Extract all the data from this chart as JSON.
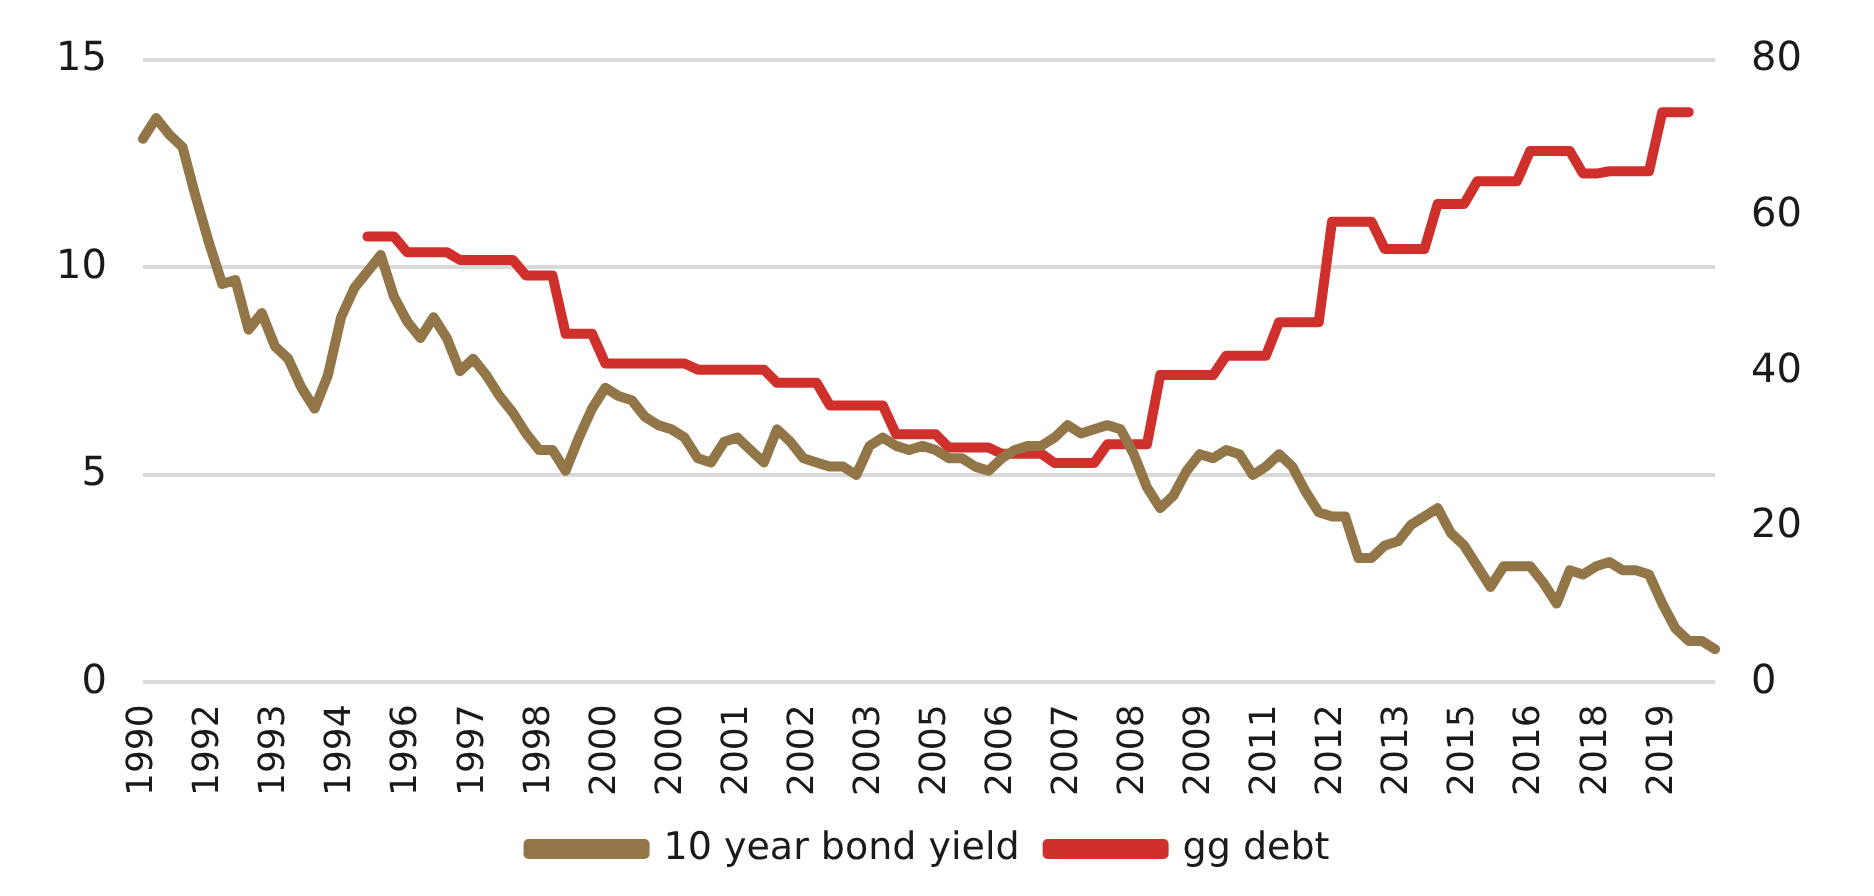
{
  "chart_data": {
    "type": "line",
    "categories": [
      "1990",
      null,
      null,
      null,
      null,
      "1992",
      null,
      null,
      null,
      null,
      "1993",
      null,
      null,
      null,
      null,
      "1994",
      null,
      null,
      null,
      null,
      "1996",
      null,
      null,
      null,
      null,
      "1997",
      null,
      null,
      null,
      null,
      "1998",
      null,
      null,
      null,
      null,
      "2000",
      null,
      null,
      null,
      null,
      "2000",
      null,
      null,
      null,
      null,
      "2001",
      null,
      null,
      null,
      null,
      "2002",
      null,
      null,
      null,
      null,
      "2003",
      null,
      null,
      null,
      null,
      "2005",
      null,
      null,
      null,
      null,
      "2006",
      null,
      null,
      null,
      null,
      "2007",
      null,
      null,
      null,
      null,
      "2008",
      null,
      null,
      null,
      null,
      "2009",
      null,
      null,
      null,
      null,
      "2011",
      null,
      null,
      null,
      null,
      "2012",
      null,
      null,
      null,
      null,
      "2013",
      null,
      null,
      null,
      null,
      "2015",
      null,
      null,
      null,
      null,
      "2016",
      null,
      null,
      null,
      null,
      "2018",
      null,
      null,
      null,
      null,
      "2019",
      null,
      null,
      null,
      null
    ],
    "series": [
      {
        "name": "10 year bond yield",
        "color": "#937648",
        "values": [
          13.1,
          13.6,
          13.2,
          12.9,
          11.7,
          10.6,
          9.6,
          9.7,
          8.5,
          8.9,
          8.1,
          7.8,
          7.1,
          6.6,
          7.4,
          8.8,
          9.5,
          9.9,
          10.3,
          9.3,
          8.7,
          8.3,
          8.8,
          8.3,
          7.5,
          7.8,
          7.4,
          6.9,
          6.5,
          6.0,
          5.6,
          5.6,
          5.1,
          5.9,
          6.6,
          7.1,
          6.9,
          6.8,
          6.4,
          6.2,
          6.1,
          5.9,
          5.4,
          5.3,
          5.8,
          5.9,
          5.6,
          5.3,
          6.1,
          5.8,
          5.4,
          5.3,
          5.2,
          5.2,
          5.0,
          5.7,
          5.9,
          5.7,
          5.6,
          5.7,
          5.6,
          5.4,
          5.4,
          5.2,
          5.1,
          5.4,
          5.6,
          5.7,
          5.7,
          5.9,
          6.2,
          6.0,
          6.1,
          6.2,
          6.1,
          5.5,
          4.7,
          4.2,
          4.5,
          5.1,
          5.5,
          5.4,
          5.6,
          5.5,
          5.0,
          5.2,
          5.5,
          5.2,
          4.6,
          4.1,
          4.0,
          4.0,
          3.0,
          3.0,
          3.3,
          3.4,
          3.8,
          4.0,
          4.2,
          3.6,
          3.3,
          2.8,
          2.3,
          2.8,
          2.8,
          2.8,
          2.4,
          1.9,
          2.7,
          2.6,
          2.8,
          2.9,
          2.7,
          2.7,
          2.6,
          1.9,
          1.3,
          1.0,
          1.0,
          0.8
        ]
      },
      {
        "name": "gg debt",
        "color": "#d0302c",
        "axis": "y2",
        "values": [
          null,
          null,
          null,
          null,
          null,
          null,
          null,
          null,
          null,
          null,
          null,
          null,
          null,
          null,
          null,
          null,
          null,
          57.3,
          57.3,
          57.3,
          55.3,
          55.3,
          55.3,
          55.3,
          54.3,
          54.3,
          54.3,
          54.3,
          54.3,
          52.3,
          52.3,
          52.3,
          44.8,
          44.8,
          44.8,
          41.0,
          41.0,
          41.0,
          41.0,
          41.0,
          41.0,
          41.0,
          40.2,
          40.2,
          40.2,
          40.2,
          40.2,
          40.2,
          38.5,
          38.5,
          38.5,
          38.5,
          35.6,
          35.6,
          35.6,
          35.6,
          35.6,
          31.9,
          31.9,
          31.9,
          31.9,
          30.2,
          30.2,
          30.2,
          30.2,
          29.4,
          29.4,
          29.4,
          29.4,
          28.2,
          28.2,
          28.2,
          28.2,
          30.6,
          30.6,
          30.6,
          30.6,
          39.5,
          39.5,
          39.5,
          39.5,
          39.5,
          42.0,
          42.0,
          42.0,
          42.0,
          46.3,
          46.3,
          46.3,
          46.3,
          59.2,
          59.2,
          59.2,
          59.2,
          55.7,
          55.7,
          55.7,
          55.7,
          61.5,
          61.5,
          61.5,
          64.4,
          64.4,
          64.4,
          64.4,
          68.3,
          68.3,
          68.3,
          68.3,
          65.4,
          65.4,
          65.7,
          65.7,
          65.7,
          65.7,
          73.3,
          73.3,
          73.3,
          null,
          null
        ]
      }
    ],
    "ylim": [
      0,
      15
    ],
    "yticks": [
      0,
      5,
      10,
      15
    ],
    "y2lim": [
      0,
      80
    ],
    "y2ticks": [
      0,
      20,
      40,
      60,
      80
    ],
    "grid": "y",
    "legend": "bottom",
    "marker": "none",
    "line_style": "solid"
  }
}
